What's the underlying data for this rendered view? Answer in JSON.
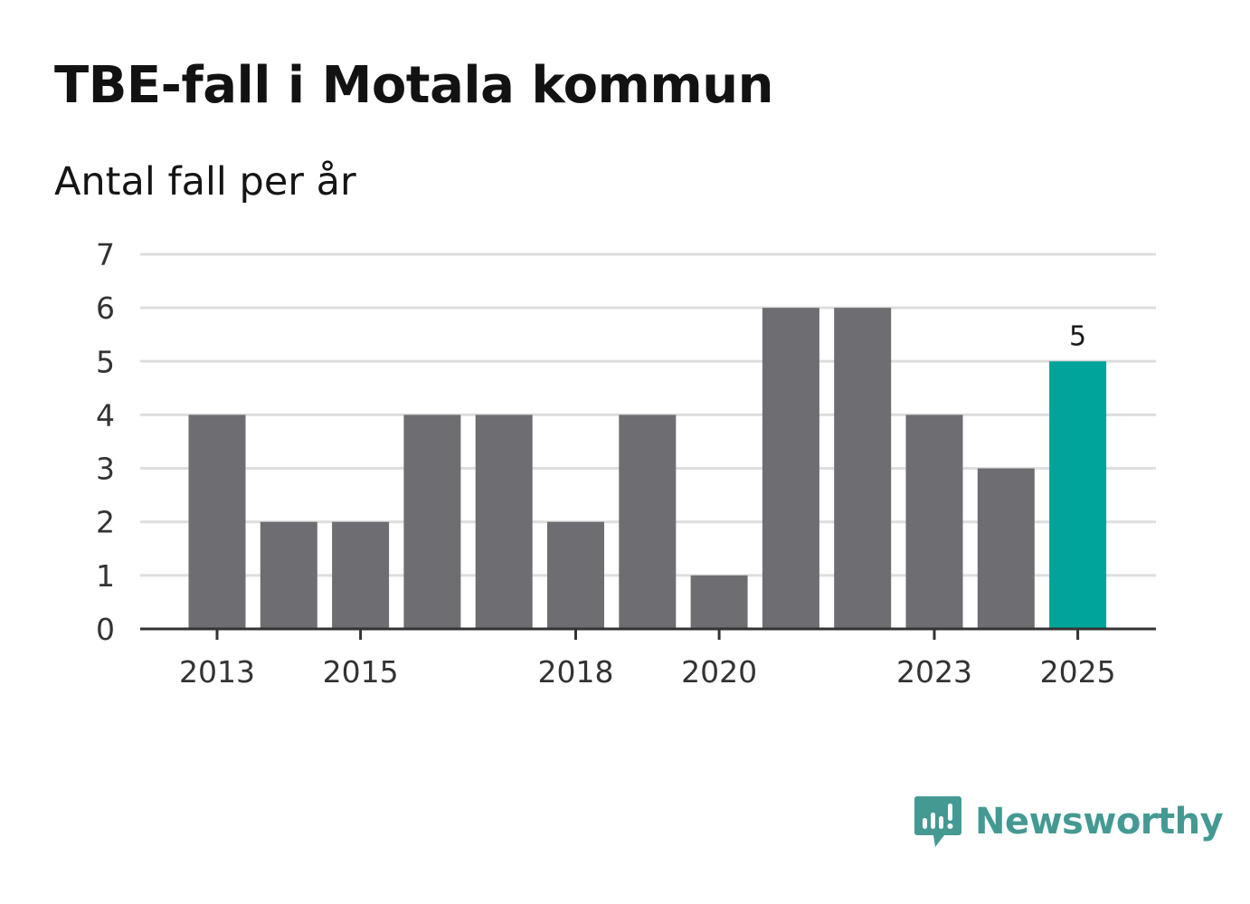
{
  "title": "TBE-fall i Motala kommun",
  "subtitle": "Antal fall per år",
  "brand": {
    "name": "Newsworthy",
    "color": "#449a93",
    "icon": "newsworthy-logo-icon"
  },
  "colors": {
    "bar": "#6e6d72",
    "highlight": "#00a49a",
    "grid": "#dddddd",
    "axis": "#333333"
  },
  "chart_data": {
    "type": "bar",
    "categories": [
      "2013",
      "2014",
      "2015",
      "2016",
      "2017",
      "2018",
      "2019",
      "2020",
      "2021",
      "2022",
      "2023",
      "2024",
      "2025"
    ],
    "values": [
      4,
      2,
      2,
      4,
      4,
      2,
      4,
      1,
      6,
      6,
      4,
      3,
      5
    ],
    "x_tick_labels": [
      "2013",
      "2015",
      "2018",
      "2020",
      "2023",
      "2025"
    ],
    "y_ticks": [
      0,
      1,
      2,
      3,
      4,
      5,
      6,
      7
    ],
    "ylim": [
      0,
      7
    ],
    "highlight_category": "2025",
    "data_labels": [
      {
        "category": "2025",
        "text": "5"
      }
    ],
    "title": "TBE-fall i Motala kommun",
    "subtitle": "Antal fall per år",
    "xlabel": "",
    "ylabel": "",
    "grid": true,
    "legend": "none"
  }
}
